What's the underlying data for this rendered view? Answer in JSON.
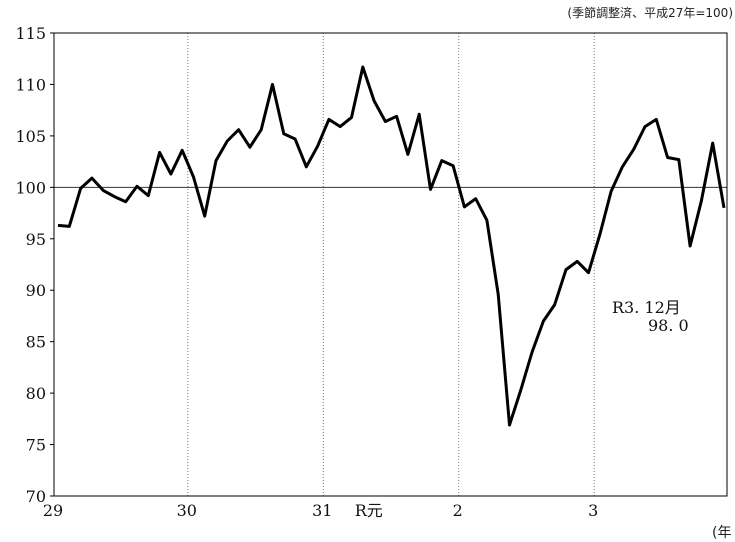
{
  "chart_data": {
    "type": "line",
    "note": "(季節調整済、平成27年=100)",
    "unit_label": "(年",
    "ylim": [
      70,
      115
    ],
    "yticks": [
      70,
      75,
      80,
      85,
      90,
      95,
      100,
      105,
      110,
      115
    ],
    "reference_line": 100,
    "grid": "vertical dotted lines at year boundaries",
    "x_tick_labels": [
      {
        "label": "29",
        "index": 0
      },
      {
        "label": "30",
        "index": 12
      },
      {
        "label": "31",
        "index": 24
      },
      {
        "label": "R元",
        "index": 27
      },
      {
        "label": "2",
        "index": 36
      },
      {
        "label": "3",
        "index": 48
      }
    ],
    "annotation": [
      "R3. 12月",
      "98. 0"
    ],
    "series": [
      {
        "values": [
          96.3,
          96.2,
          99.9,
          100.9,
          99.7,
          99.1,
          98.6,
          100.1,
          99.2,
          103.4,
          101.3,
          103.6,
          101.0,
          97.2,
          102.6,
          104.5,
          105.6,
          103.9,
          105.6,
          110.0,
          105.2,
          104.7,
          102.0,
          104.0,
          106.6,
          105.9,
          106.8,
          111.7,
          108.4,
          106.4,
          106.9,
          103.2,
          107.1,
          99.8,
          102.6,
          102.1,
          98.1,
          98.9,
          96.8,
          89.6,
          76.9,
          80.3,
          84.0,
          87.0,
          88.6,
          92.0,
          92.8,
          91.7,
          95.4,
          99.6,
          102.0,
          103.7,
          105.9,
          106.6,
          102.9,
          102.7,
          94.3,
          98.7,
          104.3,
          98.0
        ]
      }
    ]
  }
}
